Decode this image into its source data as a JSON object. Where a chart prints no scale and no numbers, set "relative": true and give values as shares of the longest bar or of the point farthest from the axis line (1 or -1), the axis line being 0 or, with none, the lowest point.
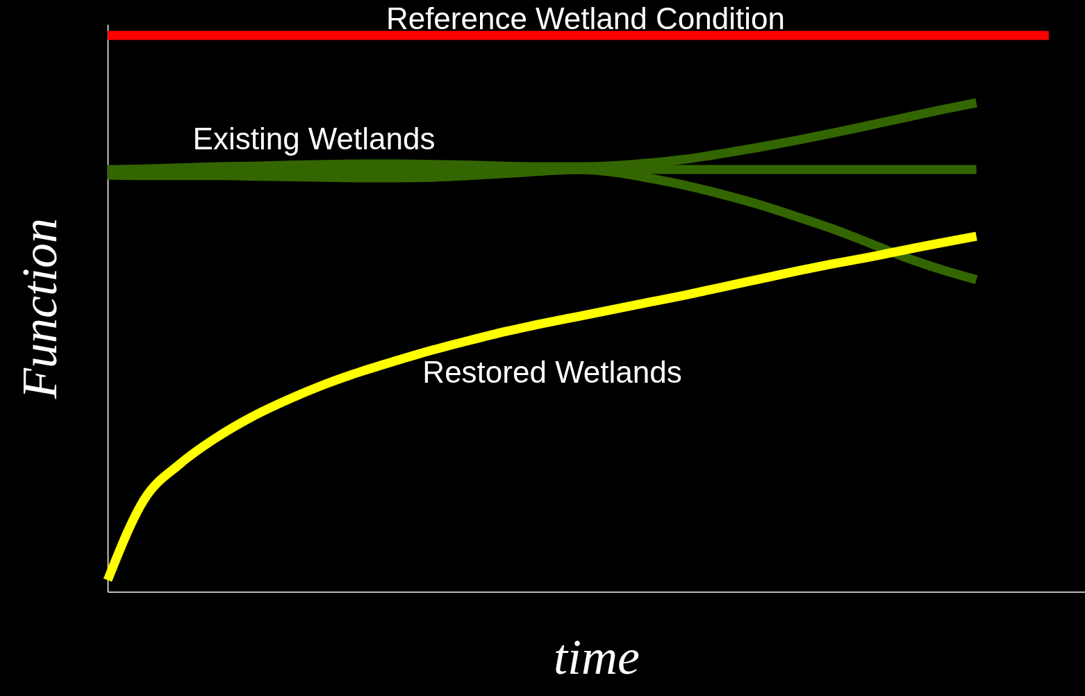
{
  "chart_data": {
    "type": "line",
    "relative": true,
    "xlabel": "time",
    "ylabel": "Function",
    "legend": false,
    "grid": false,
    "tick_labels": false,
    "marker": "none",
    "line_style": "solid",
    "categories": [
      null,
      null,
      null,
      null,
      null,
      null,
      null,
      null,
      null,
      null,
      null,
      null,
      null,
      null,
      null,
      null,
      null,
      null,
      null,
      null,
      null,
      null,
      null,
      null,
      null,
      null,
      null,
      null
    ],
    "series": [
      {
        "name": "Reference Wetland Condition",
        "color": "#ff0000",
        "values": [
          1,
          1,
          1,
          1,
          1,
          1,
          1,
          1,
          1,
          1,
          1,
          1,
          1,
          1,
          1,
          1,
          1,
          1,
          1,
          1,
          1,
          1,
          1,
          1,
          1,
          1,
          1,
          null
        ]
      },
      {
        "color": "#336600",
        "values": [
          0.758,
          0.76,
          0.762,
          0.764,
          0.765,
          0.767,
          0.768,
          0.769,
          0.769,
          0.768,
          0.767,
          0.765,
          0.764,
          0.764,
          0.766,
          0.771,
          0.778,
          0.788,
          0.799,
          0.811,
          0.824,
          0.838,
          0.852,
          0.866,
          0.879,
          null,
          null,
          null
        ]
      },
      {
        "color": "#336600",
        "values": [
          0.749,
          0.748,
          0.748,
          0.748,
          0.747,
          0.746,
          0.745,
          0.744,
          0.744,
          0.745,
          0.748,
          0.752,
          0.756,
          0.759,
          0.754,
          0.743,
          0.73,
          0.714,
          0.696,
          0.675,
          0.653,
          0.628,
          0.602,
          0.58,
          0.561,
          null,
          null,
          null
        ]
      },
      {
        "name": "Existing Wetlands",
        "color": "#336600",
        "values": [
          0.759,
          0.759,
          0.759,
          0.759,
          0.759,
          0.759,
          0.759,
          0.759,
          0.759,
          0.759,
          0.759,
          0.759,
          0.759,
          0.759,
          0.759,
          0.759,
          0.759,
          0.759,
          0.759,
          0.759,
          0.759,
          0.759,
          0.759,
          0.759,
          0.759,
          null,
          null,
          null
        ]
      },
      {
        "name": "Restored Wetlands",
        "color": "#ffff00",
        "values": [
          0.021,
          0.165,
          0.23,
          0.277,
          0.315,
          0.346,
          0.373,
          0.396,
          0.416,
          0.435,
          0.452,
          0.468,
          0.482,
          0.495,
          0.508,
          0.521,
          0.534,
          0.548,
          0.562,
          0.576,
          0.589,
          0.601,
          0.614,
          0.627,
          0.639,
          null,
          null,
          null
        ]
      }
    ]
  }
}
